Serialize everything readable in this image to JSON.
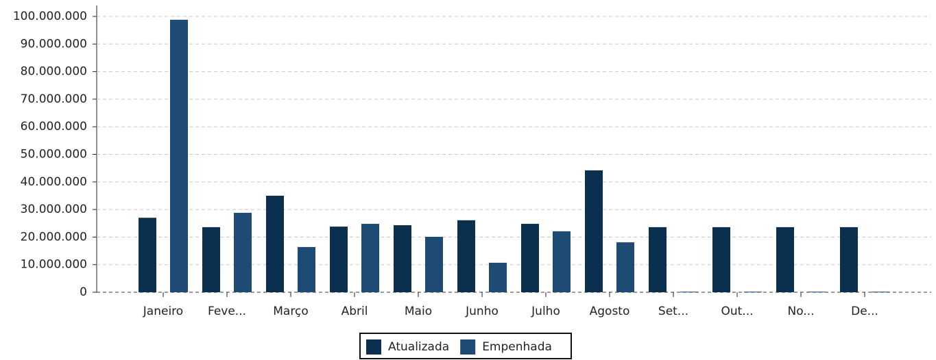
{
  "chart_data": {
    "type": "bar",
    "categories": [
      "Janeiro",
      "Feve...",
      "Março",
      "Abril",
      "Maio",
      "Junho",
      "Julho",
      "Agosto",
      "Set...",
      "Out...",
      "No...",
      "De..."
    ],
    "series": [
      {
        "name": "Atualizada",
        "color": "#0b2f4e",
        "values": [
          27000000,
          23600000,
          35000000,
          23800000,
          24300000,
          26100000,
          24800000,
          44200000,
          23600000,
          23600000,
          23600000,
          23600000
        ]
      },
      {
        "name": "Empenhada",
        "color": "#1e4b73",
        "values": [
          98800000,
          28800000,
          16400000,
          24800000,
          20100000,
          10700000,
          22100000,
          18100000,
          200000,
          200000,
          200000,
          200000
        ]
      }
    ],
    "ylim": [
      0,
      100000000
    ],
    "yticks": [
      0,
      {
        "value": 10000000,
        "label": "10.000.000"
      },
      {
        "value": 20000000,
        "label": "20.000.000"
      },
      {
        "value": 30000000,
        "label": "30.000.000"
      },
      {
        "value": 40000000,
        "label": "40.000.000"
      },
      {
        "value": 50000000,
        "label": "50.000.000"
      },
      {
        "value": 60000000,
        "label": "60.000.000"
      },
      {
        "value": 70000000,
        "label": "70.000.000"
      },
      {
        "value": 80000000,
        "label": "80.000.000"
      },
      {
        "value": 90000000,
        "label": "90.000.000"
      },
      {
        "value": 100000000,
        "label": "100.000.000"
      }
    ],
    "grid": true,
    "legend": "bottom"
  }
}
